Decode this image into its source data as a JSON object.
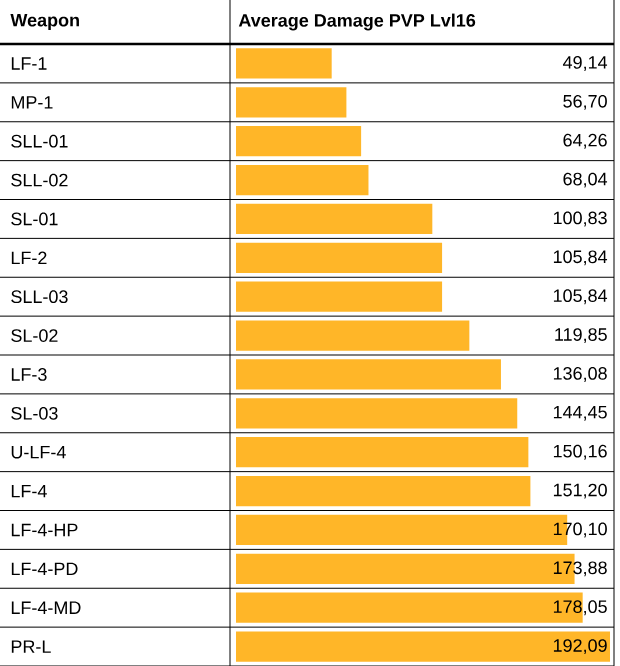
{
  "chart_data": {
    "type": "bar",
    "orientation": "horizontal",
    "ylabel": "Weapon",
    "xlabel": "Average Damage PVP Lvl16",
    "categories": [
      "LF-1",
      "MP-1",
      "SLL-01",
      "SLL-02",
      "SL-01",
      "LF-2",
      "SLL-03",
      "SL-02",
      "LF-3",
      "SL-03",
      "U-LF-4",
      "LF-4",
      "LF-4-HP",
      "LF-4-PD",
      "LF-4-MD",
      "PR-L"
    ],
    "values": [
      49.14,
      56.7,
      64.26,
      68.04,
      100.83,
      105.84,
      105.84,
      119.85,
      136.08,
      144.45,
      150.16,
      151.2,
      170.1,
      173.88,
      178.05,
      192.09
    ],
    "value_labels": [
      "49,14",
      "56,70",
      "64,26",
      "68,04",
      "100,83",
      "105,84",
      "105,84",
      "119,85",
      "136,08",
      "144,45",
      "150,16",
      "151,20",
      "170,10",
      "173,88",
      "178,05",
      "192,09"
    ],
    "color": "#ffb628",
    "grid": true
  }
}
